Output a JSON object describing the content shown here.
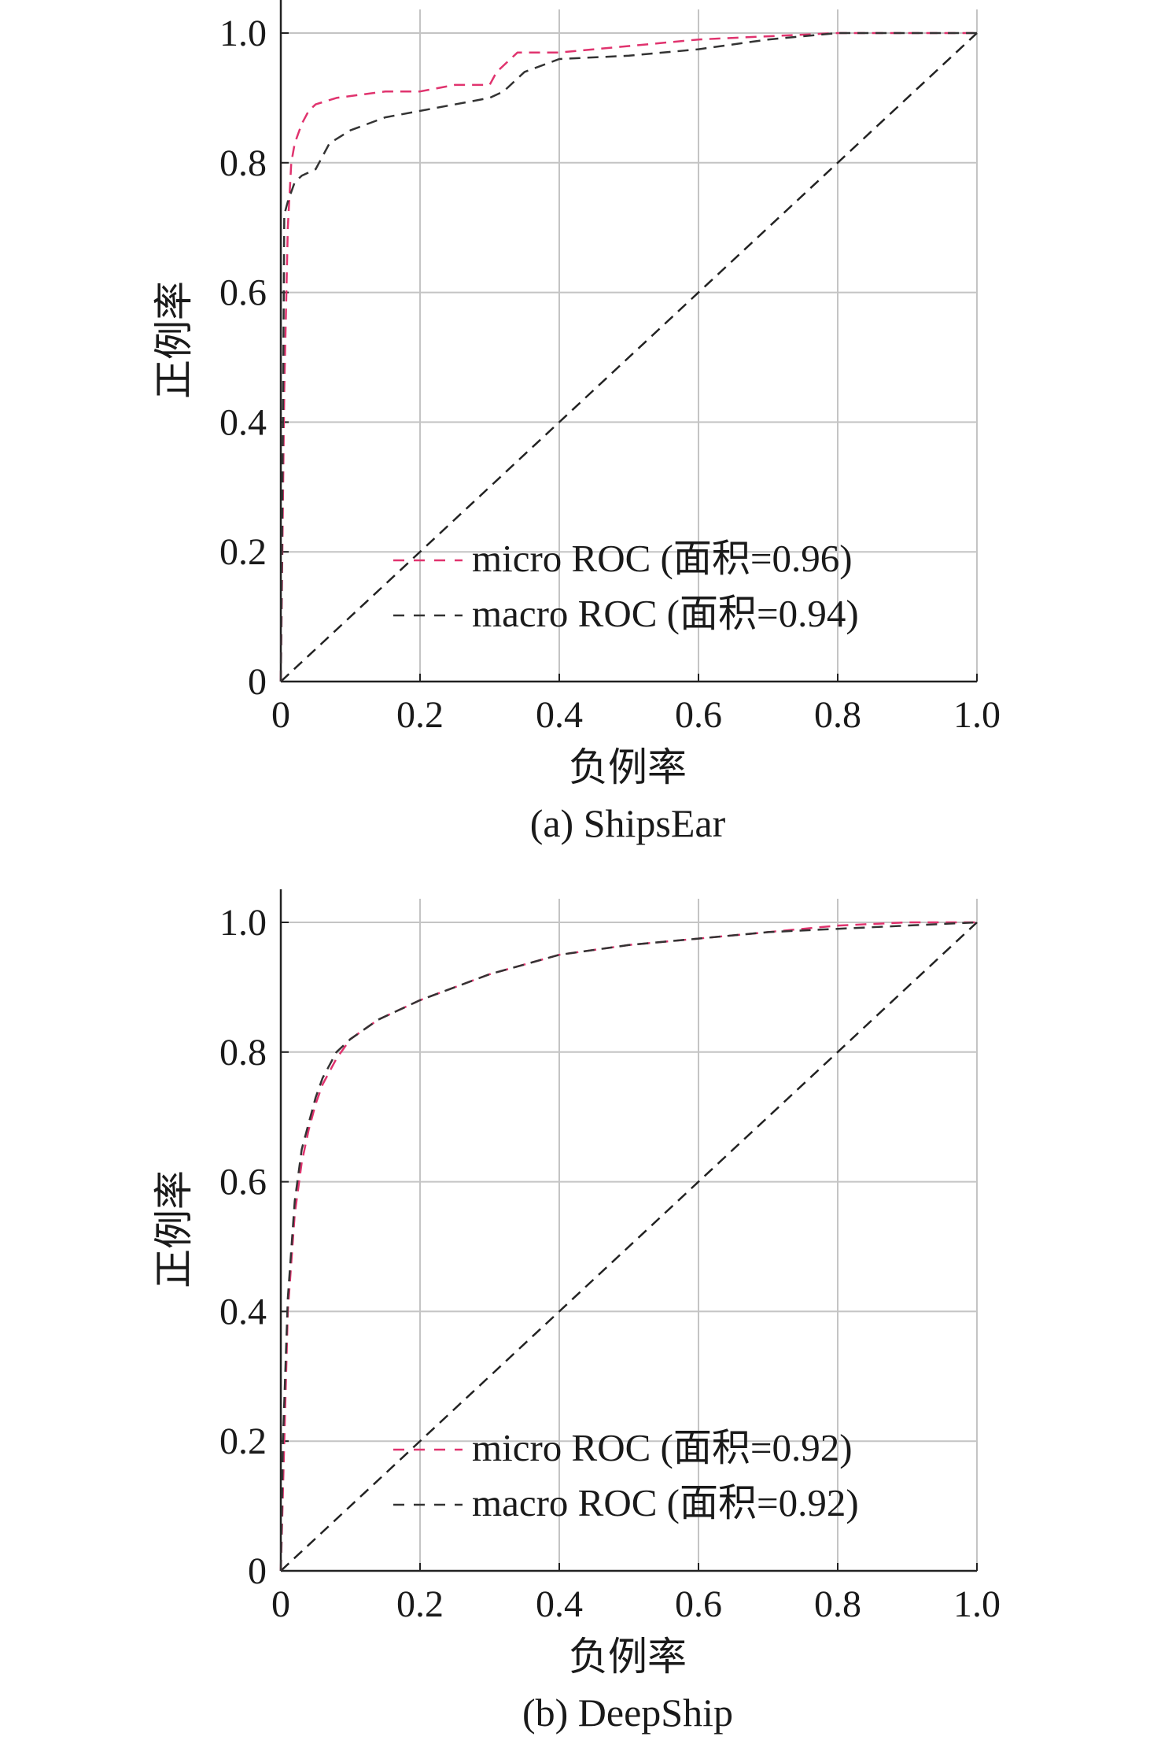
{
  "colors": {
    "micro": "#e0336e",
    "macro": "#333333",
    "grid": "#c4c4c4",
    "axis": "#222222",
    "chance": "#222222"
  },
  "chart_data": [
    {
      "type": "line",
      "caption": "(a) ShipsEar",
      "xlabel": "负例率",
      "ylabel": "正例率",
      "xlim": [
        0,
        1.0
      ],
      "ylim": [
        0,
        1.0
      ],
      "xticks": [
        "0",
        "0.2",
        "0.4",
        "0.6",
        "0.8",
        "1.0"
      ],
      "yticks": [
        "0",
        "0.2",
        "0.4",
        "0.6",
        "0.8",
        "1.0"
      ],
      "grid": true,
      "legend_position": "lower-right",
      "series": [
        {
          "name": "micro ROC (面积=0.96)",
          "color": "micro",
          "x": [
            0,
            0.005,
            0.008,
            0.01,
            0.015,
            0.02,
            0.03,
            0.04,
            0.05,
            0.08,
            0.15,
            0.2,
            0.25,
            0.3,
            0.31,
            0.33,
            0.34,
            0.4,
            0.5,
            0.6,
            0.7,
            0.8,
            1.0
          ],
          "y": [
            0,
            0.45,
            0.6,
            0.7,
            0.8,
            0.83,
            0.86,
            0.88,
            0.89,
            0.9,
            0.91,
            0.91,
            0.92,
            0.92,
            0.94,
            0.96,
            0.97,
            0.97,
            0.98,
            0.99,
            0.995,
            1.0,
            1.0
          ]
        },
        {
          "name": "macro ROC (面积=0.94)",
          "color": "macro",
          "x": [
            0,
            0.003,
            0.005,
            0.01,
            0.02,
            0.03,
            0.05,
            0.07,
            0.1,
            0.15,
            0.2,
            0.3,
            0.32,
            0.35,
            0.4,
            0.5,
            0.6,
            0.7,
            0.8,
            1.0
          ],
          "y": [
            0,
            0.4,
            0.72,
            0.74,
            0.77,
            0.78,
            0.79,
            0.83,
            0.85,
            0.87,
            0.88,
            0.9,
            0.91,
            0.94,
            0.96,
            0.965,
            0.975,
            0.99,
            1.0,
            1.0
          ]
        },
        {
          "name": "",
          "color": "chance",
          "x": [
            0,
            1.0
          ],
          "y": [
            0,
            1.0
          ]
        }
      ]
    },
    {
      "type": "line",
      "caption": "(b) DeepShip",
      "xlabel": "负例率",
      "ylabel": "正例率",
      "xlim": [
        0,
        1.0
      ],
      "ylim": [
        0,
        1.0
      ],
      "xticks": [
        "0",
        "0.2",
        "0.4",
        "0.6",
        "0.8",
        "1.0"
      ],
      "yticks": [
        "0",
        "0.2",
        "0.4",
        "0.6",
        "0.8",
        "1.0"
      ],
      "grid": true,
      "legend_position": "lower-right",
      "series": [
        {
          "name": "micro ROC (面积=0.92)",
          "color": "micro",
          "x": [
            0,
            0.005,
            0.01,
            0.02,
            0.03,
            0.04,
            0.05,
            0.06,
            0.08,
            0.1,
            0.14,
            0.2,
            0.3,
            0.4,
            0.5,
            0.6,
            0.7,
            0.8,
            0.9,
            1.0
          ],
          "y": [
            0,
            0.2,
            0.4,
            0.55,
            0.63,
            0.68,
            0.72,
            0.75,
            0.79,
            0.82,
            0.85,
            0.88,
            0.92,
            0.95,
            0.965,
            0.975,
            0.985,
            0.995,
            1.0,
            1.0
          ]
        },
        {
          "name": "macro ROC (面积=0.92)",
          "color": "macro",
          "x": [
            0,
            0.003,
            0.01,
            0.02,
            0.03,
            0.04,
            0.05,
            0.06,
            0.08,
            0.1,
            0.14,
            0.2,
            0.3,
            0.4,
            0.5,
            0.6,
            0.7,
            0.8,
            0.9,
            1.0
          ],
          "y": [
            0,
            0.2,
            0.42,
            0.57,
            0.65,
            0.69,
            0.73,
            0.76,
            0.8,
            0.82,
            0.85,
            0.88,
            0.92,
            0.95,
            0.965,
            0.975,
            0.985,
            0.99,
            0.995,
            1.0
          ]
        },
        {
          "name": "",
          "color": "chance",
          "x": [
            0,
            1.0
          ],
          "y": [
            0,
            1.0
          ]
        }
      ]
    }
  ]
}
